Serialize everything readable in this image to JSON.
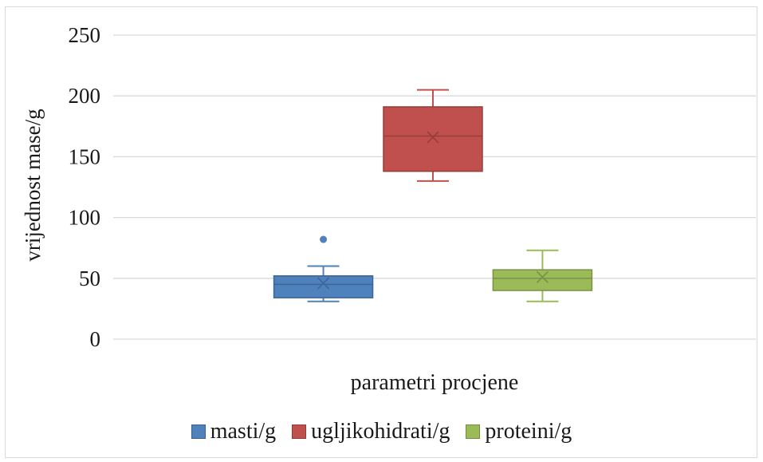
{
  "chart_data": {
    "type": "box",
    "xlabel": "parametri procjene",
    "ylabel": "vrijednost mase/g",
    "ylim": [
      0,
      250
    ],
    "yticks": [
      0,
      50,
      100,
      150,
      200,
      250
    ],
    "grid": true,
    "legend_position": "bottom",
    "series": [
      {
        "name": "masti/g",
        "color": "#4f81bd",
        "whisker_low": 31,
        "q1": 34,
        "median": 45,
        "q3": 52,
        "whisker_high": 60,
        "mean": 46,
        "outliers": [
          82
        ]
      },
      {
        "name": "ugljikohidrati/g",
        "color": "#c0504d",
        "whisker_low": 130,
        "q1": 138,
        "median": 167,
        "q3": 191,
        "whisker_high": 205,
        "mean": 166,
        "outliers": []
      },
      {
        "name": "proteini/g",
        "color": "#9bbb59",
        "whisker_low": 31,
        "q1": 40,
        "median": 50,
        "q3": 57,
        "whisker_high": 73,
        "mean": 51,
        "outliers": []
      }
    ]
  }
}
